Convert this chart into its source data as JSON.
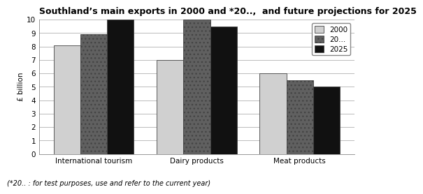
{
  "title": "Southland’s main exports in 2000 and *20..,  and future projections for 2025",
  "footnote": "(*20.. : for test purposes, use and refer to the current year)",
  "categories": [
    "International tourism",
    "Dairy products",
    "Meat products"
  ],
  "series": {
    "2000": [
      8.1,
      7.0,
      6.0
    ],
    "20...": [
      8.9,
      10.0,
      5.5
    ],
    "2025": [
      10.0,
      9.5,
      5.0
    ]
  },
  "legend_labels": [
    "2000",
    "20...",
    "2025"
  ],
  "colors": [
    "#d0d0d0",
    "#606060",
    "#111111"
  ],
  "hatch_patterns": [
    "",
    "...",
    ""
  ],
  "ylabel": "£ billion",
  "ylim": [
    0,
    10
  ],
  "yticks": [
    0,
    1,
    2,
    3,
    4,
    5,
    6,
    7,
    8,
    9,
    10
  ],
  "bar_width": 0.26,
  "background_color": "#ffffff",
  "grid_color": "#bbbbbb",
  "title_fontsize": 9.0,
  "axis_fontsize": 7.5,
  "legend_fontsize": 7.5,
  "footnote_fontsize": 7.0
}
